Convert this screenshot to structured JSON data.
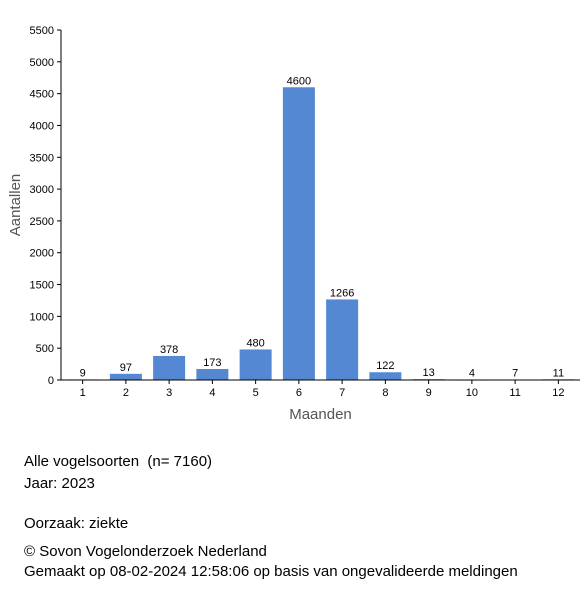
{
  "chart_data": {
    "type": "bar",
    "categories": [
      "1",
      "2",
      "3",
      "4",
      "5",
      "6",
      "7",
      "8",
      "9",
      "10",
      "11",
      "12"
    ],
    "values": [
      9,
      97,
      378,
      173,
      480,
      4600,
      1266,
      122,
      13,
      4,
      7,
      11
    ],
    "data_labels": [
      "9",
      "97",
      "378",
      "173",
      "480",
      "4600",
      "1266",
      "122",
      "13",
      "4",
      "7",
      "11"
    ],
    "ylim": [
      0,
      5500
    ],
    "yticks": [
      0,
      500,
      1000,
      1500,
      2000,
      2500,
      3000,
      3500,
      4000,
      4500,
      5000,
      5500
    ],
    "ytick_labels": [
      "0",
      "500",
      "1000",
      "1500",
      "2000",
      "2500",
      "3000",
      "3500",
      "4000",
      "4500",
      "5000",
      "5500"
    ],
    "xlabel": "Maanden",
    "ylabel": "Aantallen",
    "grid": false,
    "legend": "none",
    "colors": {
      "bar": "#5588d2",
      "axis": "#000000",
      "axis_title": "#555555"
    }
  },
  "info": {
    "species": "Alle vogelsoorten  (n= 7160)",
    "year": "Jaar: 2023",
    "cause": "Oorzaak: ziekte",
    "copyright": "© Sovon Vogelonderzoek Nederland",
    "made": "Gemaakt op 08-02-2024 12:58:06 op basis van ongevalideerde meldingen"
  }
}
